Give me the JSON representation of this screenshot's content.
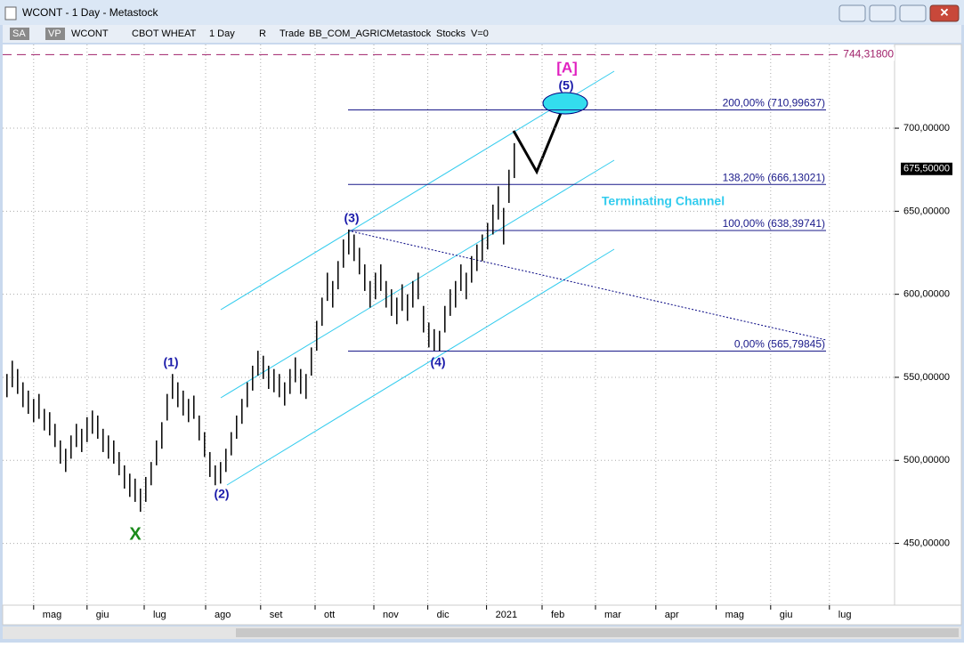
{
  "window": {
    "title": "WCONT - 1 Day - Metastock"
  },
  "toolbar": {
    "items": [
      "SA",
      "VP",
      "WCONT",
      "CBOT WHEAT",
      "1 Day",
      "R",
      "Trade",
      "BB_COM_AGRIC",
      "Metastock",
      "Stocks",
      "V=0"
    ]
  },
  "chart_data": {
    "type": "bar",
    "bars": [
      [
        538,
        552
      ],
      [
        544,
        560
      ],
      [
        540,
        555
      ],
      [
        532,
        547
      ],
      [
        528,
        542
      ],
      [
        523,
        537
      ],
      [
        525,
        540
      ],
      [
        518,
        531
      ],
      [
        515,
        529
      ],
      [
        508,
        522
      ],
      [
        498,
        512
      ],
      [
        493,
        507
      ],
      [
        501,
        515
      ],
      [
        508,
        522
      ],
      [
        505,
        519
      ],
      [
        511,
        526
      ],
      [
        516,
        530
      ],
      [
        513,
        527
      ],
      [
        505,
        519
      ],
      [
        501,
        515
      ],
      [
        498,
        512
      ],
      [
        491,
        505
      ],
      [
        483,
        497
      ],
      [
        478,
        492
      ],
      [
        475,
        489
      ],
      [
        469,
        483
      ],
      [
        475,
        490
      ],
      [
        485,
        499
      ],
      [
        497,
        512
      ],
      [
        507,
        523
      ],
      [
        524,
        540
      ],
      [
        537,
        552
      ],
      [
        532,
        547
      ],
      [
        527,
        542
      ],
      [
        523,
        537
      ],
      [
        525,
        539
      ],
      [
        512,
        527
      ],
      [
        502,
        517
      ],
      [
        490,
        505
      ],
      [
        485,
        497
      ],
      [
        486,
        499
      ],
      [
        493,
        507
      ],
      [
        503,
        517
      ],
      [
        513,
        527
      ],
      [
        522,
        537
      ],
      [
        532,
        547
      ],
      [
        542,
        557
      ],
      [
        551,
        566
      ],
      [
        549,
        563
      ],
      [
        543,
        557
      ],
      [
        541,
        555
      ],
      [
        538,
        552
      ],
      [
        533,
        547
      ],
      [
        540,
        555
      ],
      [
        547,
        562
      ],
      [
        540,
        555
      ],
      [
        537,
        552
      ],
      [
        551,
        568
      ],
      [
        566,
        584
      ],
      [
        581,
        598
      ],
      [
        596,
        613
      ],
      [
        592,
        608
      ],
      [
        603,
        620
      ],
      [
        616,
        633
      ],
      [
        624,
        639
      ],
      [
        620,
        636
      ],
      [
        612,
        628
      ],
      [
        602,
        618
      ],
      [
        592,
        608
      ],
      [
        597,
        613
      ],
      [
        602,
        618
      ],
      [
        592,
        608
      ],
      [
        587,
        603
      ],
      [
        582,
        598
      ],
      [
        590,
        606
      ],
      [
        584,
        600
      ],
      [
        592,
        608
      ],
      [
        597,
        613
      ],
      [
        577,
        593
      ],
      [
        568,
        583
      ],
      [
        566,
        579
      ],
      [
        566,
        578
      ],
      [
        577,
        593
      ],
      [
        587,
        603
      ],
      [
        592,
        608
      ],
      [
        602,
        618
      ],
      [
        597,
        613
      ],
      [
        607,
        623
      ],
      [
        614,
        630
      ],
      [
        620,
        636
      ],
      [
        627,
        643
      ],
      [
        636,
        654
      ],
      [
        645,
        665
      ],
      [
        630,
        652
      ],
      [
        655,
        675
      ],
      [
        670,
        691
      ]
    ],
    "xlim": [
      -0.8,
      166.2
    ],
    "xticks": [
      {
        "value": 5,
        "label": "mag"
      },
      {
        "value": 15,
        "label": "giu"
      },
      {
        "value": 25.7,
        "label": "lug"
      },
      {
        "value": 37.2,
        "label": "ago"
      },
      {
        "value": 47.5,
        "label": "set"
      },
      {
        "value": 57.7,
        "label": "ott"
      },
      {
        "value": 68.7,
        "label": "nov"
      },
      {
        "value": 78.8,
        "label": "dic"
      },
      {
        "value": 89.8,
        "label": "2021"
      },
      {
        "value": 100.2,
        "label": "feb"
      },
      {
        "value": 110.2,
        "label": "mar"
      },
      {
        "value": 121.5,
        "label": "apr"
      },
      {
        "value": 132.8,
        "label": "mag"
      },
      {
        "value": 143,
        "label": "giu"
      },
      {
        "value": 154,
        "label": "lug"
      }
    ],
    "ylim": [
      412.8,
      750.4
    ],
    "yticks": [
      {
        "value": 450,
        "label": "450,00000"
      },
      {
        "value": 500,
        "label": "500,00000"
      },
      {
        "value": 550,
        "label": "550,00000"
      },
      {
        "value": 600,
        "label": "600,00000"
      },
      {
        "value": 650,
        "label": "650,00000"
      },
      {
        "value": 700,
        "label": "700,00000"
      }
    ],
    "last_price": {
      "value": 675.5,
      "label": "675,50000"
    },
    "target_line": {
      "value": 744.318,
      "label": "744,31800"
    },
    "fib_levels": [
      {
        "value": 710.99637,
        "label": "200,00% (710,99637)"
      },
      {
        "value": 666.13021,
        "label": "138,20% (666,13021)"
      },
      {
        "value": 638.39741,
        "label": "100,00% (638,39741)"
      },
      {
        "value": 565.79845,
        "label": "0,00% (565,79845)"
      }
    ],
    "annotations": {
      "w1": "(1)",
      "w2": "(2)",
      "w3": "(3)",
      "w4": "(4)",
      "w5": "(5)",
      "a": "[A]",
      "x": "X",
      "channel": "Terminating Channel"
    },
    "color": "#000000",
    "grid": true
  }
}
